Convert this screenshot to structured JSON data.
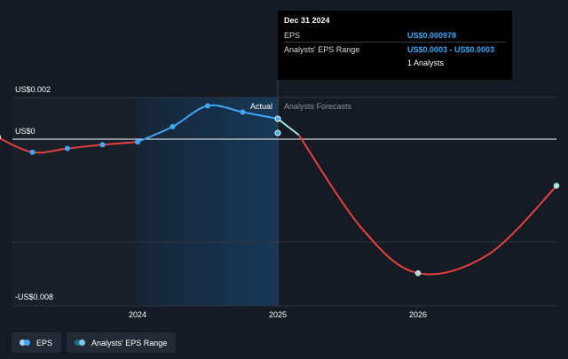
{
  "chart_data": {
    "type": "line",
    "y_ticks": [
      {
        "label": "US$0.002",
        "value": 0.002
      },
      {
        "label": "US$0",
        "value": 0
      },
      {
        "label": "-US$0.008",
        "value": -0.008
      }
    ],
    "x_ticks": [
      {
        "label": "2024",
        "value": 2024.0
      },
      {
        "label": "2025",
        "value": 2025.0
      },
      {
        "label": "2026",
        "value": 2026.0
      }
    ],
    "xlim": [
      2023.0,
      2026.99
    ],
    "ylim": [
      -0.008,
      0.002
    ],
    "segment_labels": {
      "actual": "Actual",
      "forecast": "Analysts Forecasts"
    },
    "series": [
      {
        "name": "EPS",
        "color": "#3fa7f5",
        "points": [
          {
            "x": 2023.0,
            "y": 0.0001
          },
          {
            "x": 2023.25,
            "y": -0.0007
          },
          {
            "x": 2023.5,
            "y": -0.0005
          },
          {
            "x": 2023.75,
            "y": -0.0003
          },
          {
            "x": 2024.0,
            "y": -0.00015
          },
          {
            "x": 2024.25,
            "y": 0.0006
          },
          {
            "x": 2024.5,
            "y": 0.0016
          },
          {
            "x": 2024.75,
            "y": 0.0013
          },
          {
            "x": 2025.0,
            "y": 0.00098
          }
        ]
      },
      {
        "name": "Analysts' EPS Range",
        "color": "#3fa7f5",
        "points": [
          {
            "x": 2025.0,
            "y": 0.0003
          }
        ]
      },
      {
        "name": "Forecast",
        "color": "#e8403f",
        "points": [
          {
            "x": 2025.0,
            "y": 0.00098
          },
          {
            "x": 2026.0,
            "y": -0.0072
          },
          {
            "x": 2027.0,
            "y": -0.0025
          }
        ]
      }
    ],
    "legend": [
      {
        "label": "EPS",
        "colors": [
          "#3fa7f5",
          "#9fd8f5"
        ]
      },
      {
        "label": "Analysts' EPS Range",
        "colors": [
          "#1b6b8a",
          "#7ec9e8"
        ]
      }
    ]
  },
  "tooltip": {
    "title": "Dec 31 2024",
    "rows": [
      {
        "label": "EPS",
        "value": "US$0.000978"
      },
      {
        "label": "Analysts' EPS Range",
        "value": "US$0.0003 - US$0.0003"
      },
      {
        "label": "",
        "value": "1 Analysts"
      }
    ]
  },
  "legend_labels": {
    "eps": "EPS",
    "range": "Analysts' EPS Range"
  }
}
